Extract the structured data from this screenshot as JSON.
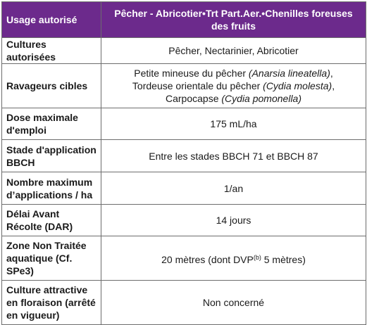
{
  "header": {
    "left": "Usage autorisé",
    "right": "Pêcher - Abricotier•Trt Part.Aer.•Chenilles foreuses des fruits"
  },
  "rows": [
    {
      "label": "Cultures autorisées",
      "value": "Pêcher, Nectarinier, Abricotier"
    },
    {
      "label": "Ravageurs cibles",
      "lines": [
        {
          "text": "Petite mineuse du pêcher ",
          "latin": "(Anarsia lineatella)",
          "tail": ","
        },
        {
          "text": "Tordeuse orientale du pêcher ",
          "latin": "(Cydia molesta)",
          "tail": ","
        },
        {
          "text": "Carpocapse ",
          "latin": "(Cydia pomonella)",
          "tail": ""
        }
      ]
    },
    {
      "label": "Dose maximale d'emploi",
      "value": "175 mL/ha"
    },
    {
      "label": "Stade d'application BBCH",
      "value": "Entre les stades BBCH 71 et BBCH 87"
    },
    {
      "label": "Nombre maximum d’applications / ha",
      "value": "1/an"
    },
    {
      "label": "Délai Avant Récolte (DAR)",
      "value": "14 jours"
    },
    {
      "label": "Zone Non Traitée aquatique (Cf. SPe3)",
      "parts": {
        "before": "20  mètres (dont DVP",
        "sup": "(b)",
        "after": " 5 mètres)"
      }
    },
    {
      "label": "Culture attractive en floraison (arrêté en vigueur)",
      "value": "Non concerné"
    }
  ]
}
